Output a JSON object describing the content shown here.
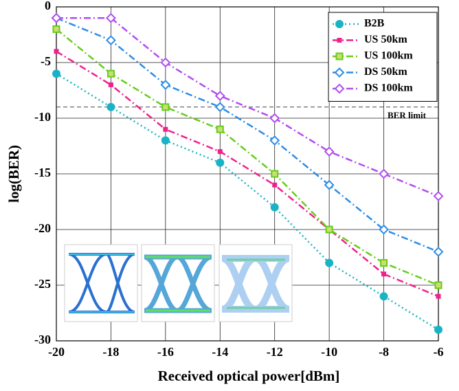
{
  "chart_data": {
    "type": "line",
    "x": [
      -20,
      -18,
      -16,
      -14,
      -12,
      -10,
      -8,
      -6
    ],
    "xlim": [
      -20,
      -6
    ],
    "xticks": [
      -20,
      -18,
      -16,
      -14,
      -12,
      -10,
      -8,
      -6
    ],
    "ylim": [
      -30,
      0
    ],
    "yticks": [
      -30,
      -25,
      -20,
      -15,
      -10,
      -5,
      0
    ],
    "xlabel": "Received optical power[dBm]",
    "ylabel": "log(BER)",
    "grid": true,
    "legend": "upper right",
    "reference_line": {
      "value": -9,
      "label": "BER limit"
    },
    "series": [
      {
        "name": "B2B",
        "color": "#1ab3c6",
        "marker": "circle",
        "dash": "dotted",
        "values": [
          -6,
          -9,
          -12,
          -14,
          -18,
          -23,
          -26,
          -29
        ]
      },
      {
        "name": "US 50km",
        "color": "#f0208c",
        "marker": "small-square",
        "dash": "dashdot",
        "values": [
          -4,
          -7,
          -11,
          -13,
          -16,
          -20,
          -24,
          -26
        ]
      },
      {
        "name": "US 100km",
        "color": "#66cc1a",
        "marker": "square",
        "dash": "dashdot",
        "values": [
          -2,
          -6,
          -9,
          -11,
          -15,
          -20,
          -23,
          -25
        ]
      },
      {
        "name": "DS 50km",
        "color": "#2a8ce6",
        "marker": "diamond",
        "dash": "dashdot",
        "values": [
          -1,
          -3,
          -7,
          -9,
          -12,
          -16,
          -20,
          -22
        ]
      },
      {
        "name": "DS 100km",
        "color": "#b24cf0",
        "marker": "diamond",
        "dash": "dashdot",
        "values": [
          -1,
          -1,
          -5,
          -8,
          -10,
          -13,
          -15,
          -17
        ]
      }
    ]
  }
}
